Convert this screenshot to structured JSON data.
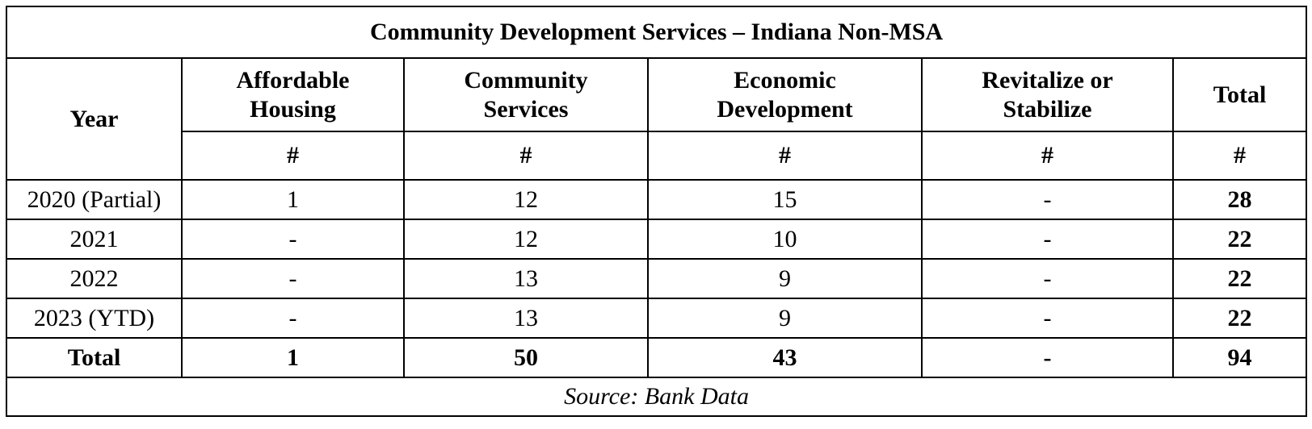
{
  "table": {
    "title": "Community Development Services – Indiana Non-MSA",
    "year_header": "Year",
    "columns": [
      {
        "line1": "Affordable",
        "line2": "Housing",
        "unit": "#"
      },
      {
        "line1": "Community",
        "line2": "Services",
        "unit": "#"
      },
      {
        "line1": "Economic",
        "line2": "Development",
        "unit": "#"
      },
      {
        "line1": "Revitalize or",
        "line2": "Stabilize",
        "unit": "#"
      }
    ],
    "total_header": "Total",
    "total_unit": "#",
    "rows": [
      {
        "year": "2020 (Partial)",
        "cells": [
          "1",
          "12",
          "15",
          "-"
        ],
        "total": "28"
      },
      {
        "year": "2021",
        "cells": [
          "-",
          "12",
          "10",
          "-"
        ],
        "total": "22"
      },
      {
        "year": "2022",
        "cells": [
          "-",
          "13",
          "9",
          "-"
        ],
        "total": "22"
      },
      {
        "year": "2023 (YTD)",
        "cells": [
          "-",
          "13",
          "9",
          "-"
        ],
        "total": "22"
      }
    ],
    "totals": {
      "label": "Total",
      "cells": [
        "1",
        "50",
        "43",
        "-"
      ],
      "total": "94"
    },
    "source": "Source: Bank Data"
  }
}
